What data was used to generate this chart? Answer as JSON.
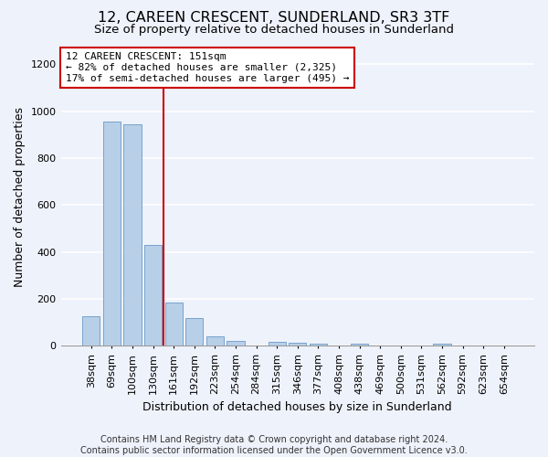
{
  "title": "12, CAREEN CRESCENT, SUNDERLAND, SR3 3TF",
  "subtitle": "Size of property relative to detached houses in Sunderland",
  "xlabel": "Distribution of detached houses by size in Sunderland",
  "ylabel": "Number of detached properties",
  "footer": "Contains HM Land Registry data © Crown copyright and database right 2024.\nContains public sector information licensed under the Open Government Licence v3.0.",
  "categories": [
    "38sqm",
    "69sqm",
    "100sqm",
    "130sqm",
    "161sqm",
    "192sqm",
    "223sqm",
    "254sqm",
    "284sqm",
    "315sqm",
    "346sqm",
    "377sqm",
    "408sqm",
    "438sqm",
    "469sqm",
    "500sqm",
    "531sqm",
    "562sqm",
    "592sqm",
    "623sqm",
    "654sqm"
  ],
  "values": [
    125,
    955,
    945,
    430,
    183,
    120,
    42,
    20,
    0,
    18,
    15,
    10,
    0,
    8,
    0,
    0,
    0,
    8,
    0,
    0,
    0
  ],
  "bar_color": "#b8cfe8",
  "bar_edge_color": "#6899c8",
  "background_color": "#eef2fb",
  "grid_color": "#ffffff",
  "property_line_x": 3.5,
  "annotation_text": "12 CAREEN CRESCENT: 151sqm\n← 82% of detached houses are smaller (2,325)\n17% of semi-detached houses are larger (495) →",
  "annotation_box_color": "#ffffff",
  "annotation_box_edge_color": "#cc0000",
  "line_color": "#cc0000",
  "ylim": [
    0,
    1270
  ],
  "yticks": [
    0,
    200,
    400,
    600,
    800,
    1000,
    1200
  ],
  "title_fontsize": 11.5,
  "subtitle_fontsize": 9.5,
  "ylabel_fontsize": 9,
  "xlabel_fontsize": 9,
  "tick_fontsize": 8,
  "annotation_fontsize": 8,
  "footer_fontsize": 7
}
